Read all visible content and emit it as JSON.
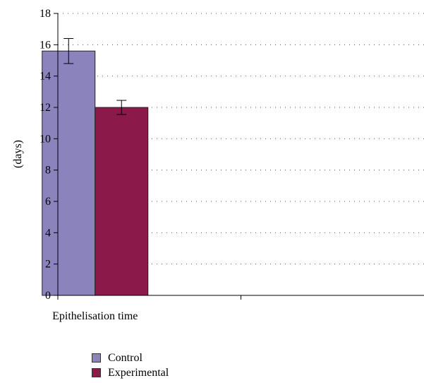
{
  "chart_data": {
    "type": "bar",
    "categories": [
      "Epithelisation time"
    ],
    "series": [
      {
        "name": "Control",
        "values": [
          15.6
        ],
        "errors": [
          0.8
        ],
        "color": "#8b84bc"
      },
      {
        "name": "Experimental",
        "values": [
          12.0
        ],
        "errors": [
          0.45
        ],
        "color": "#8b1a4a"
      }
    ],
    "ylabel": "(days)",
    "xlabel": "",
    "ylim": [
      0,
      18
    ],
    "yticks": [
      0,
      2,
      4,
      6,
      8,
      10,
      12,
      14,
      16,
      18
    ],
    "grid": "horizontal dotted",
    "legend": "bottom-left"
  }
}
